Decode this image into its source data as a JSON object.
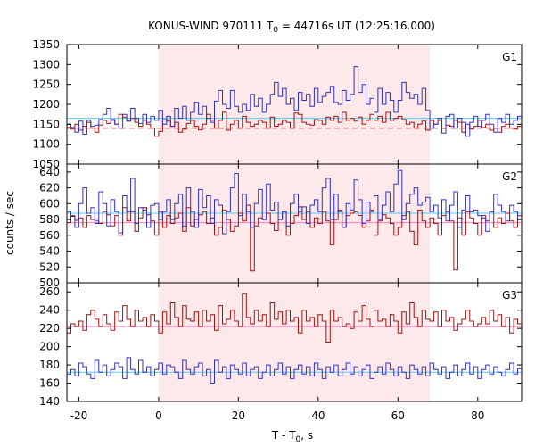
{
  "chart_data": {
    "type": "line",
    "title_main": "KONUS-WIND 970111 T",
    "title_sub": "0",
    "title_rest": " = 44716s UT (12:25:16.000)",
    "xlabel_main": "T - T",
    "xlabel_sub": "0",
    "xlabel_rest": ", s",
    "ylabel": "counts / sec",
    "xlim": [
      -23,
      91
    ],
    "x_ticks": [
      -20,
      0,
      20,
      40,
      60,
      80
    ],
    "highlight_interval": [
      0,
      68
    ],
    "bin_width": 1,
    "colors": {
      "background_highlight": "#fde8ea",
      "series_red": "#a01010",
      "series_blue": "#3030c0",
      "background_red": "#ff77bb",
      "background_blue": "#55ccee"
    },
    "panels": [
      {
        "label": "G1",
        "ylim": [
          1050,
          1350
        ],
        "y_ticks": [
          1050,
          1100,
          1150,
          1200,
          1250,
          1300,
          1350
        ],
        "background_red": 1140,
        "background_blue": 1165,
        "blue_bg_shift_after_68": 1160,
        "series": [
          {
            "color": "red",
            "x_start": -23,
            "values": [
              1142,
              1138,
              1150,
              1135,
              1145,
              1155,
              1140,
              1130,
              1148,
              1160,
              1152,
              1162,
              1150,
              1175,
              1168,
              1158,
              1165,
              1155,
              1145,
              1160,
              1150,
              1140,
              1120,
              1132,
              1162,
              1158,
              1145,
              1155,
              1130,
              1138,
              1152,
              1160,
              1145,
              1136,
              1150,
              1175,
              1160,
              1140,
              1160,
              1180,
              1135,
              1150,
              1160,
              1140,
              1170,
              1155,
              1145,
              1150,
              1160,
              1155,
              1140,
              1168,
              1145,
              1150,
              1160,
              1155,
              1140,
              1178,
              1175,
              1155,
              1150,
              1148,
              1162,
              1160,
              1150,
              1168,
              1160,
              1170,
              1155,
              1180,
              1160,
              1165,
              1158,
              1168,
              1150,
              1160,
              1175,
              1160,
              1170,
              1155,
              1180,
              1160,
              1165,
              1170,
              1162,
              1150,
              1155,
              1140,
              1150,
              1158,
              1135,
              1160,
              1150,
              1160,
              1140,
              1148,
              1145,
              1160,
              1155,
              1130,
              1150,
              1138,
              1145,
              1160,
              1142,
              1150,
              1135,
              1140,
              1130,
              1145,
              1150,
              1140,
              1138,
              1145
            ]
          },
          {
            "color": "blue",
            "x_start": -23,
            "values": [
              1150,
              1142,
              1130,
              1158,
              1125,
              1160,
              1145,
              1148,
              1162,
              1175,
              1190,
              1160,
              1150,
              1140,
              1175,
              1158,
              1190,
              1165,
              1152,
              1175,
              1155,
              1170,
              1160,
              1185,
              1150,
              1170,
              1145,
              1190,
              1165,
              1195,
              1160,
              1180,
              1205,
              1175,
              1195,
              1165,
              1155,
              1208,
              1235,
              1200,
              1190,
              1235,
              1195,
              1180,
              1200,
              1185,
              1225,
              1195,
              1215,
              1180,
              1200,
              1225,
              1255,
              1220,
              1240,
              1200,
              1215,
              1185,
              1230,
              1210,
              1225,
              1195,
              1240,
              1205,
              1220,
              1230,
              1245,
              1205,
              1200,
              1235,
              1210,
              1225,
              1295,
              1230,
              1250,
              1200,
              1215,
              1180,
              1240,
              1200,
              1230,
              1210,
              1180,
              1210,
              1255,
              1230,
              1215,
              1225,
              1200,
              1240,
              1185,
              1140,
              1150,
              1165,
              1128,
              1170,
              1175,
              1140,
              1165,
              1155,
              1120,
              1155,
              1170,
              1145,
              1160,
              1175,
              1150,
              1130,
              1165,
              1155,
              1175,
              1150,
              1160,
              1170
            ]
          }
        ]
      },
      {
        "label": "G2",
        "ylim": [
          500,
          650
        ],
        "y_ticks": [
          500,
          520,
          540,
          560,
          580,
          600,
          620,
          640
        ],
        "background_red": 576,
        "background_blue": 588,
        "series": [
          {
            "color": "red",
            "x_start": -23,
            "values": [
              576,
              584,
              579,
              582,
              570,
              585,
              580,
              578,
              575,
              590,
              586,
              572,
              585,
              560,
              595,
              578,
              590,
              565,
              582,
              595,
              586,
              578,
              560,
              590,
              570,
              585,
              575,
              582,
              588,
              565,
              595,
              572,
              580,
              586,
              590,
              575,
              582,
              560,
              570,
              592,
              580,
              565,
              572,
              588,
              578,
              598,
              515,
              572,
              582,
              580,
              588,
              575,
              566,
              580,
              590,
              560,
              575,
              585,
              596,
              580,
              590,
              570,
              582,
              575,
              590,
              578,
              548,
              580,
              592,
              570,
              585,
              588,
              590,
              585,
              570,
              578,
              592,
              560,
              578,
              586,
              582,
              575,
              560,
              570,
              585,
              590,
              565,
              548,
              592,
              578,
              570,
              582,
              575,
              560,
              585,
              590,
              578,
              516,
              582,
              560,
              590,
              582,
              575,
              560,
              585,
              578,
              590,
              570,
              582,
              575,
              588,
              578,
              570,
              585
            ]
          },
          {
            "color": "blue",
            "x_start": -23,
            "values": [
              590,
              585,
              570,
              600,
              620,
              588,
              595,
              575,
              615,
              600,
              572,
              605,
              590,
              563,
              610,
              590,
              632,
              575,
              595,
              592,
              570,
              598,
              600,
              580,
              590,
              605,
              580,
              600,
              612,
              572,
              620,
              590,
              570,
              618,
              595,
              610,
              575,
              605,
              598,
              562,
              590,
              620,
              638,
              585,
              612,
              590,
              570,
              600,
              618,
              580,
              625,
              592,
              602,
              580,
              590,
              572,
              600,
              612,
              590,
              596,
              575,
              598,
              605,
              590,
              620,
              632,
              580,
              612,
              590,
              570,
              600,
              592,
              630,
              605,
              575,
              602,
              590,
              610,
              580,
              598,
              615,
              590,
              625,
              642,
              580,
              600,
              612,
              620,
              598,
              602,
              608,
              590,
              598,
              582,
              605,
              578,
              598,
              615,
              570,
              592,
              610,
              590,
              592,
              585,
              582,
              565,
              590,
              612,
              598,
              590,
              578,
              598,
              590,
              580
            ]
          }
        ]
      },
      {
        "label": "G3",
        "ylim": [
          140,
          270
        ],
        "y_ticks": [
          140,
          160,
          180,
          200,
          220,
          240,
          260
        ],
        "background_red": 222,
        "background_blue": 172,
        "series": [
          {
            "color": "red",
            "x_start": -23,
            "values": [
              215,
              225,
              222,
              228,
              218,
              235,
              240,
              230,
              222,
              235,
              225,
              218,
              238,
              228,
              245,
              230,
              222,
              240,
              228,
              232,
              222,
              235,
              228,
              215,
              238,
              225,
              248,
              232,
              222,
              245,
              230,
              228,
              238,
              222,
              240,
              228,
              235,
              218,
              245,
              225,
              230,
              240,
              228,
              222,
              258,
              232,
              225,
              240,
              228,
              235,
              222,
              248,
              230,
              238,
              225,
              240,
              228,
              232,
              215,
              240,
              228,
              232,
              222,
              235,
              228,
              205,
              240,
              228,
              232,
              222,
              225,
              220,
              238,
              228,
              245,
              230,
              222,
              240,
              228,
              230,
              222,
              235,
              228,
              215,
              238,
              225,
              248,
              232,
              222,
              240,
              230,
              228,
              238,
              222,
              240,
              228,
              232,
              218,
              225,
              230,
              240,
              228,
              222,
              225,
              232,
              225,
              240,
              228,
              235,
              222,
              232,
              215,
              230,
              225
            ]
          },
          {
            "color": "blue",
            "x_start": -23,
            "values": [
              170,
              175,
              168,
              182,
              178,
              170,
              165,
              185,
              172,
              180,
              168,
              175,
              182,
              178,
              165,
              188,
              175,
              170,
              185,
              172,
              178,
              168,
              175,
              182,
              170,
              180,
              178,
              172,
              165,
              185,
              175,
              170,
              178,
              182,
              168,
              175,
              160,
              185,
              172,
              178,
              165,
              180,
              175,
              170,
              182,
              168,
              175,
              178,
              165,
              172,
              180,
              168,
              175,
              182,
              170,
              178,
              165,
              175,
              180,
              170,
              178,
              168,
              182,
              175,
              165,
              178,
              172,
              180,
              168,
              175,
              182,
              170,
              178,
              168,
              175,
              180,
              165,
              172,
              178,
              170,
              182,
              175,
              168,
              178,
              172,
              165,
              180,
              175,
              170,
              178,
              168,
              182,
              175,
              170,
              178,
              165,
              172,
              180,
              168,
              175,
              182,
              170,
              178,
              165,
              175,
              180,
              170,
              178,
              172,
              168,
              175,
              182,
              170,
              176
            ]
          }
        ]
      }
    ]
  }
}
